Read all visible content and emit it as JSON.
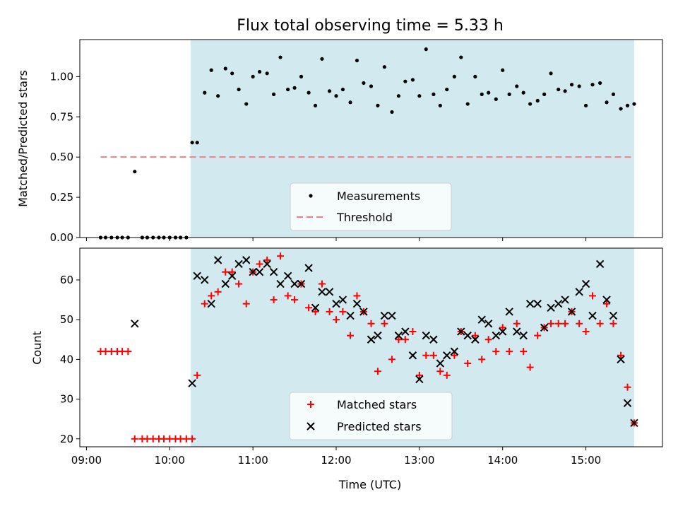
{
  "colors": {
    "shade": "#d3e9f0",
    "threshold": "#f08080",
    "matched": "#ff0000",
    "predicted": "#000000",
    "measurement": "#000000"
  },
  "chart_data": [
    {
      "type": "scatter",
      "title": "Flux total observing time = 5.33 h",
      "xlabel": "",
      "ylabel": "Matched/Predicted stars",
      "xlim": [
        8.92,
        15.92
      ],
      "ylim": [
        0,
        1.23
      ],
      "shaded_region": [
        10.25,
        15.58
      ],
      "yticks": [
        "0.00",
        "0.25",
        "0.50",
        "0.75",
        "1.00"
      ],
      "ytick_values": [
        0,
        0.25,
        0.5,
        0.75,
        1.0
      ],
      "legend_location": "lower center",
      "series": [
        {
          "name": "Measurements",
          "marker": "dot",
          "x": [
            9.17,
            9.23,
            9.3,
            9.37,
            9.43,
            9.5,
            9.58,
            9.67,
            9.73,
            9.8,
            9.87,
            9.93,
            10.0,
            10.07,
            10.13,
            10.2,
            10.27,
            10.33,
            10.42,
            10.5,
            10.58,
            10.67,
            10.75,
            10.83,
            10.92,
            11.0,
            11.08,
            11.17,
            11.25,
            11.33,
            11.42,
            11.5,
            11.58,
            11.67,
            11.75,
            11.83,
            11.92,
            12.0,
            12.08,
            12.17,
            12.25,
            12.33,
            12.42,
            12.5,
            12.58,
            12.67,
            12.75,
            12.83,
            12.92,
            13.0,
            13.08,
            13.17,
            13.25,
            13.33,
            13.42,
            13.5,
            13.58,
            13.67,
            13.75,
            13.83,
            13.92,
            14.0,
            14.08,
            14.17,
            14.25,
            14.33,
            14.42,
            14.5,
            14.58,
            14.67,
            14.75,
            14.83,
            14.92,
            15.0,
            15.08,
            15.17,
            15.25,
            15.33,
            15.42,
            15.5,
            15.58
          ],
          "y": [
            0,
            0,
            0,
            0,
            0,
            0,
            0.41,
            0,
            0,
            0,
            0,
            0,
            0,
            0,
            0,
            0,
            0.59,
            0.59,
            0.9,
            1.04,
            0.88,
            1.05,
            1.02,
            0.92,
            0.83,
            1.0,
            1.03,
            1.02,
            0.89,
            1.12,
            0.92,
            0.93,
            1.0,
            0.9,
            0.82,
            1.11,
            0.91,
            0.88,
            0.92,
            0.84,
            1.1,
            0.96,
            0.94,
            0.82,
            1.06,
            0.78,
            0.88,
            0.97,
            0.98,
            0.88,
            1.17,
            0.89,
            0.82,
            0.92,
            1.0,
            1.12,
            0.83,
            1.0,
            0.89,
            0.9,
            0.86,
            1.04,
            0.89,
            0.94,
            0.9,
            0.83,
            0.85,
            0.89,
            1.02,
            0.92,
            0.91,
            0.95,
            0.94,
            0.82,
            0.95,
            0.96,
            0.84,
            0.89,
            0.8,
            0.82,
            0.83
          ]
        },
        {
          "name": "Threshold",
          "marker": "dashed-line",
          "x": [
            9.17,
            15.58
          ],
          "y": [
            0.5,
            0.5
          ]
        }
      ]
    },
    {
      "type": "scatter",
      "title": "",
      "xlabel": "Time (UTC)",
      "ylabel": "Count",
      "xlim": [
        8.92,
        15.92
      ],
      "ylim": [
        18,
        68
      ],
      "shaded_region": [
        10.25,
        15.58
      ],
      "xticks": [
        "09:00",
        "10:00",
        "11:00",
        "12:00",
        "13:00",
        "14:00",
        "15:00"
      ],
      "xtick_values": [
        9,
        10,
        11,
        12,
        13,
        14,
        15
      ],
      "yticks": [
        "20",
        "30",
        "40",
        "50",
        "60"
      ],
      "ytick_values": [
        20,
        30,
        40,
        50,
        60
      ],
      "legend_location": "lower center",
      "series": [
        {
          "name": "Matched stars",
          "marker": "plus",
          "x": [
            9.17,
            9.23,
            9.3,
            9.37,
            9.43,
            9.5,
            9.58,
            9.67,
            9.73,
            9.8,
            9.87,
            9.93,
            10.0,
            10.07,
            10.13,
            10.2,
            10.27,
            10.33,
            10.42,
            10.5,
            10.58,
            10.67,
            10.75,
            10.83,
            10.92,
            11.0,
            11.08,
            11.17,
            11.25,
            11.33,
            11.42,
            11.5,
            11.58,
            11.67,
            11.75,
            11.83,
            11.92,
            12.0,
            12.08,
            12.17,
            12.25,
            12.33,
            12.42,
            12.5,
            12.58,
            12.67,
            12.75,
            12.83,
            12.92,
            13.0,
            13.08,
            13.17,
            13.25,
            13.33,
            13.42,
            13.5,
            13.58,
            13.67,
            13.75,
            13.83,
            13.92,
            14.0,
            14.08,
            14.17,
            14.25,
            14.33,
            14.42,
            14.5,
            14.58,
            14.67,
            14.75,
            14.83,
            14.92,
            15.0,
            15.08,
            15.17,
            15.25,
            15.33,
            15.42,
            15.5,
            15.58
          ],
          "y": [
            42,
            42,
            42,
            42,
            42,
            42,
            20,
            20,
            20,
            20,
            20,
            20,
            20,
            20,
            20,
            20,
            20,
            36,
            54,
            56,
            57,
            62,
            62,
            59,
            54,
            62,
            64,
            65,
            55,
            66,
            56,
            55,
            59,
            53,
            52,
            59,
            52,
            50,
            52,
            46,
            56,
            52,
            49,
            37,
            49,
            40,
            45,
            45,
            47,
            36,
            41,
            41,
            37,
            36,
            41,
            47,
            39,
            46,
            40,
            45,
            42,
            48,
            42,
            49,
            42,
            38,
            46,
            48,
            49,
            49,
            49,
            52,
            49,
            47,
            56,
            49,
            54,
            49,
            41,
            33,
            24
          ]
        },
        {
          "name": "Predicted stars",
          "marker": "x",
          "x": [
            9.58,
            10.27,
            10.33,
            10.42,
            10.5,
            10.58,
            10.67,
            10.75,
            10.83,
            10.92,
            11.0,
            11.08,
            11.17,
            11.25,
            11.33,
            11.42,
            11.5,
            11.58,
            11.67,
            11.75,
            11.83,
            11.92,
            12.0,
            12.08,
            12.17,
            12.25,
            12.33,
            12.42,
            12.5,
            12.58,
            12.67,
            12.75,
            12.83,
            12.92,
            13.0,
            13.08,
            13.17,
            13.25,
            13.33,
            13.42,
            13.5,
            13.58,
            13.67,
            13.75,
            13.83,
            13.92,
            14.0,
            14.08,
            14.17,
            14.25,
            14.33,
            14.42,
            14.5,
            14.58,
            14.67,
            14.75,
            14.83,
            14.92,
            15.0,
            15.08,
            15.17,
            15.25,
            15.33,
            15.42,
            15.5,
            15.58
          ],
          "y": [
            49,
            34,
            61,
            60,
            54,
            65,
            59,
            61,
            64,
            65,
            62,
            62,
            64,
            62,
            59,
            61,
            59,
            59,
            63,
            53,
            57,
            57,
            54,
            55,
            51,
            54,
            52,
            45,
            46,
            51,
            51,
            46,
            47,
            41,
            35,
            46,
            45,
            39,
            41,
            42,
            47,
            46,
            45,
            50,
            49,
            46,
            47,
            52,
            47,
            46,
            54,
            54,
            48,
            53,
            54,
            55,
            52,
            57,
            59,
            51,
            64,
            55,
            51,
            40,
            29,
            24
          ]
        }
      ]
    }
  ]
}
